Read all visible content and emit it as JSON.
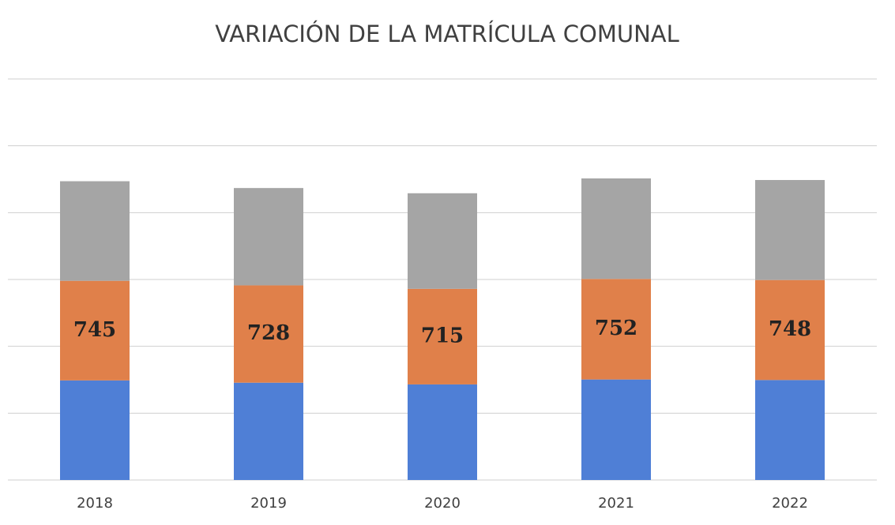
{
  "chart_data": {
    "type": "stacked_bar",
    "title": "VARIACIÓN DE LA MATRÍCULA COMUNAL",
    "categories": [
      "2018",
      "2019",
      "2020",
      "2021",
      "2022"
    ],
    "series": [
      {
        "color": "#4f7fd6",
        "values": [
          745,
          728,
          715,
          752,
          748
        ]
      },
      {
        "color": "#e0804a",
        "values": [
          745,
          728,
          715,
          752,
          748
        ],
        "labeled": true
      },
      {
        "color": "#a5a5a5",
        "values": [
          745,
          728,
          715,
          752,
          748
        ]
      }
    ],
    "ylim": [
      0,
      3000
    ],
    "yticks": [
      0,
      500,
      1000,
      1500,
      2000,
      2500,
      3000
    ],
    "grid": true
  }
}
